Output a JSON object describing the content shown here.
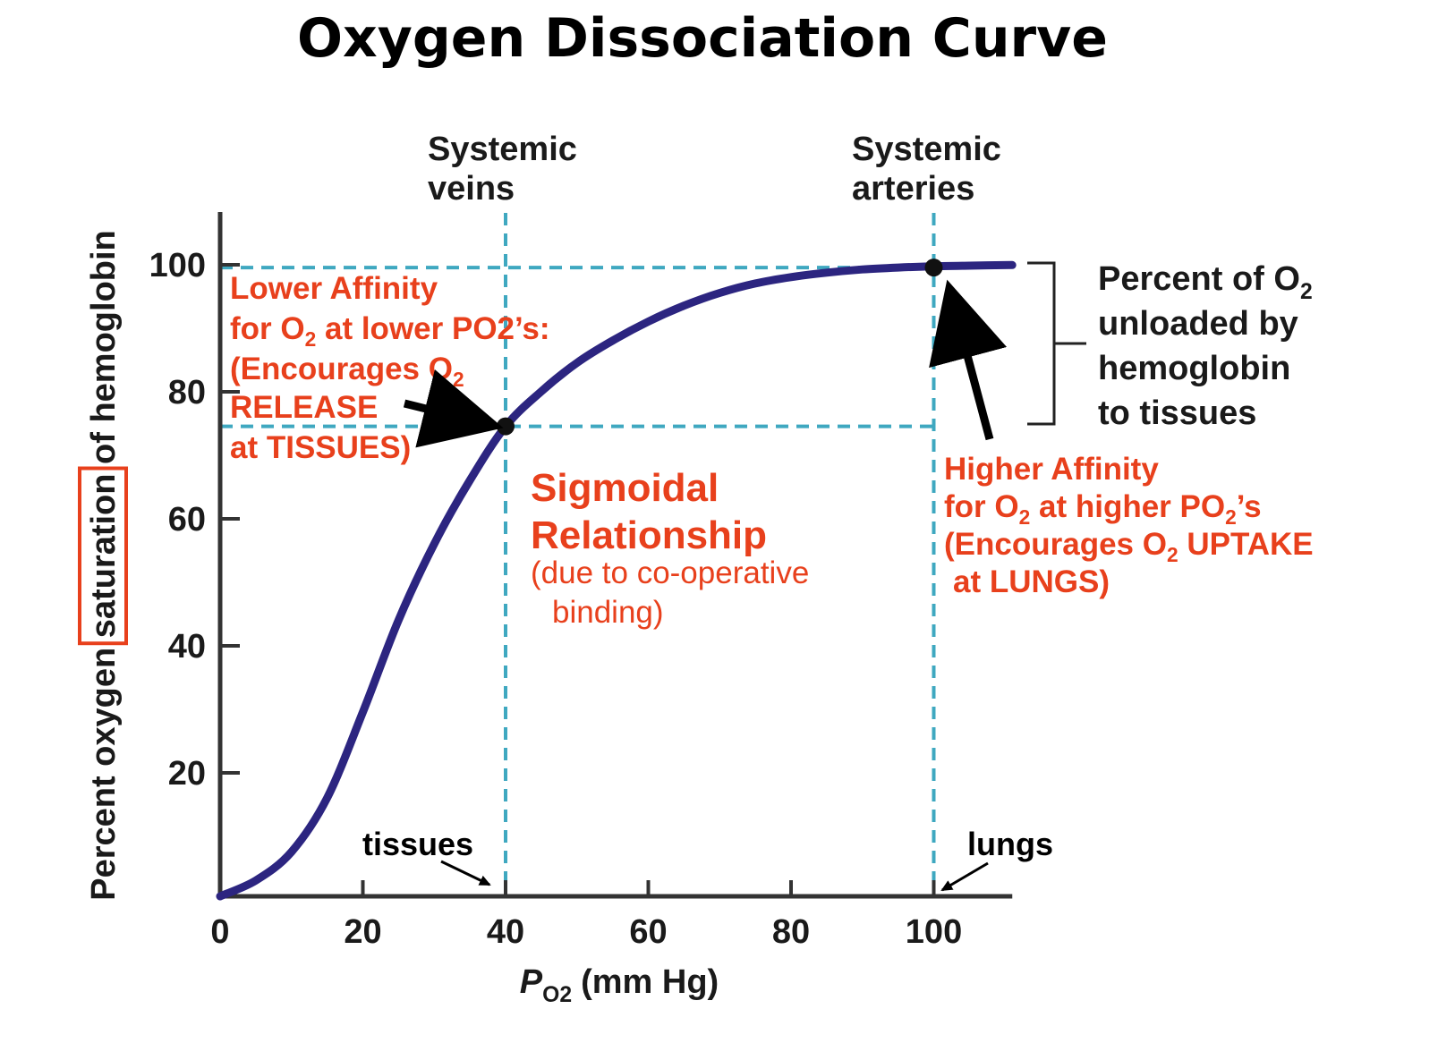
{
  "title": "Oxygen Dissociation Curve",
  "chart_data": {
    "type": "line",
    "xlabel": "P",
    "xlabel_sub": "O2",
    "xlabel_unit": "(mm Hg)",
    "ylabel_left": "Percent oxygen ",
    "ylabel_highlight": "saturation",
    "ylabel_right": " of hemoglobin",
    "xlim": [
      0,
      110
    ],
    "ylim": [
      0,
      100
    ],
    "x_ticks": [
      "0",
      "20",
      "40",
      "60",
      "80",
      "100"
    ],
    "x_tick_values": [
      0,
      20,
      40,
      60,
      80,
      100
    ],
    "y_ticks": [
      "20",
      "40",
      "60",
      "80",
      "100"
    ],
    "y_tick_values": [
      20,
      40,
      60,
      80,
      100
    ],
    "series": [
      {
        "x": [
          0,
          5,
          10,
          15,
          20,
          25,
          30,
          35,
          40,
          45,
          50,
          55,
          60,
          65,
          70,
          75,
          80,
          85,
          90,
          95,
          100,
          105,
          111
        ],
        "y": [
          0,
          2.5,
          7,
          15.5,
          29,
          43.5,
          55.5,
          65.5,
          74,
          79.5,
          84,
          87.5,
          90.5,
          93,
          95,
          96.5,
          97.5,
          98.2,
          98.7,
          99,
          99.2,
          99.3,
          99.4
        ]
      }
    ],
    "reference_lines": [
      {
        "axis": "x",
        "value": 40
      },
      {
        "axis": "x",
        "value": 100
      },
      {
        "axis": "y",
        "value": 74
      },
      {
        "axis": "y",
        "value": 99
      }
    ],
    "points": [
      {
        "x": 40,
        "y": 74
      },
      {
        "x": 100,
        "y": 99
      }
    ],
    "colors": {
      "curve": "#2c2580",
      "reference": "#3fa8c0",
      "annotation": "#e8401c",
      "axis": "#333333"
    }
  },
  "annotations": {
    "systemic_veins": [
      "Systemic",
      "veins"
    ],
    "systemic_arteries": [
      "Systemic",
      "arteries"
    ],
    "tissues": "tissues",
    "lungs": "lungs",
    "percent_unloaded": {
      "line1": "Percent of O",
      "line1_sub": "2",
      "line2": "unloaded by",
      "line3": "hemoglobin",
      "line4": "to tissues"
    },
    "lower_affinity": {
      "line1": "Lower Affinity",
      "line2_a": "for O",
      "line2_sub": "2",
      "line2_b": " at lower PO2’s:",
      "line3_a": "(Encourages O",
      "line3_sub": "2",
      "line4": "RELEASE",
      "line5": "at TISSUES)"
    },
    "sigmoidal": {
      "line1": "Sigmoidal",
      "line2": "Relationship",
      "line3": "(due to co-operative",
      "line4": "binding)"
    },
    "higher_affinity": {
      "line1": "Higher Affinity",
      "line2_a": "for O",
      "line2_sub": "2",
      "line2_b": " at higher PO",
      "line2_sub2": "2",
      "line2_c": "’s",
      "line3_a": "(Encourages O",
      "line3_sub": "2",
      "line3_b": " UPTAKE",
      "line4": "at LUNGS)"
    }
  }
}
